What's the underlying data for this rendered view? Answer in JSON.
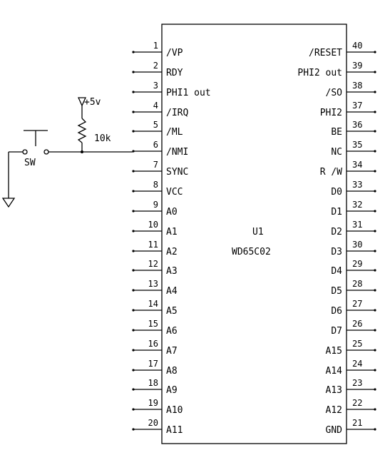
{
  "chip": {
    "ref": "U1",
    "part": "WD65C02",
    "left_pins": [
      {
        "num": "1",
        "name": "/VP"
      },
      {
        "num": "2",
        "name": "RDY"
      },
      {
        "num": "3",
        "name": "PHI1 out"
      },
      {
        "num": "4",
        "name": "/IRQ"
      },
      {
        "num": "5",
        "name": "/ML"
      },
      {
        "num": "6",
        "name": "/NMI"
      },
      {
        "num": "7",
        "name": "SYNC"
      },
      {
        "num": "8",
        "name": "VCC"
      },
      {
        "num": "9",
        "name": "A0"
      },
      {
        "num": "10",
        "name": "A1"
      },
      {
        "num": "11",
        "name": "A2"
      },
      {
        "num": "12",
        "name": "A3"
      },
      {
        "num": "13",
        "name": "A4"
      },
      {
        "num": "14",
        "name": "A5"
      },
      {
        "num": "15",
        "name": "A6"
      },
      {
        "num": "16",
        "name": "A7"
      },
      {
        "num": "17",
        "name": "A8"
      },
      {
        "num": "18",
        "name": "A9"
      },
      {
        "num": "19",
        "name": "A10"
      },
      {
        "num": "20",
        "name": "A11"
      }
    ],
    "right_pins": [
      {
        "num": "40",
        "name": "/RESET"
      },
      {
        "num": "39",
        "name": "PHI2 out"
      },
      {
        "num": "38",
        "name": "/SO"
      },
      {
        "num": "37",
        "name": "PHI2"
      },
      {
        "num": "36",
        "name": "BE"
      },
      {
        "num": "35",
        "name": "NC"
      },
      {
        "num": "34",
        "name": "R /W"
      },
      {
        "num": "33",
        "name": "D0"
      },
      {
        "num": "32",
        "name": "D1"
      },
      {
        "num": "31",
        "name": "D2"
      },
      {
        "num": "30",
        "name": "D3"
      },
      {
        "num": "29",
        "name": "D4"
      },
      {
        "num": "28",
        "name": "D5"
      },
      {
        "num": "27",
        "name": "D6"
      },
      {
        "num": "26",
        "name": "D7"
      },
      {
        "num": "25",
        "name": "A15"
      },
      {
        "num": "24",
        "name": "A14"
      },
      {
        "num": "23",
        "name": "A13"
      },
      {
        "num": "22",
        "name": "A12"
      },
      {
        "num": "21",
        "name": "GND"
      }
    ]
  },
  "power": {
    "label": "+5v"
  },
  "resistor": {
    "value": "10k"
  },
  "switch": {
    "label": "SW"
  }
}
